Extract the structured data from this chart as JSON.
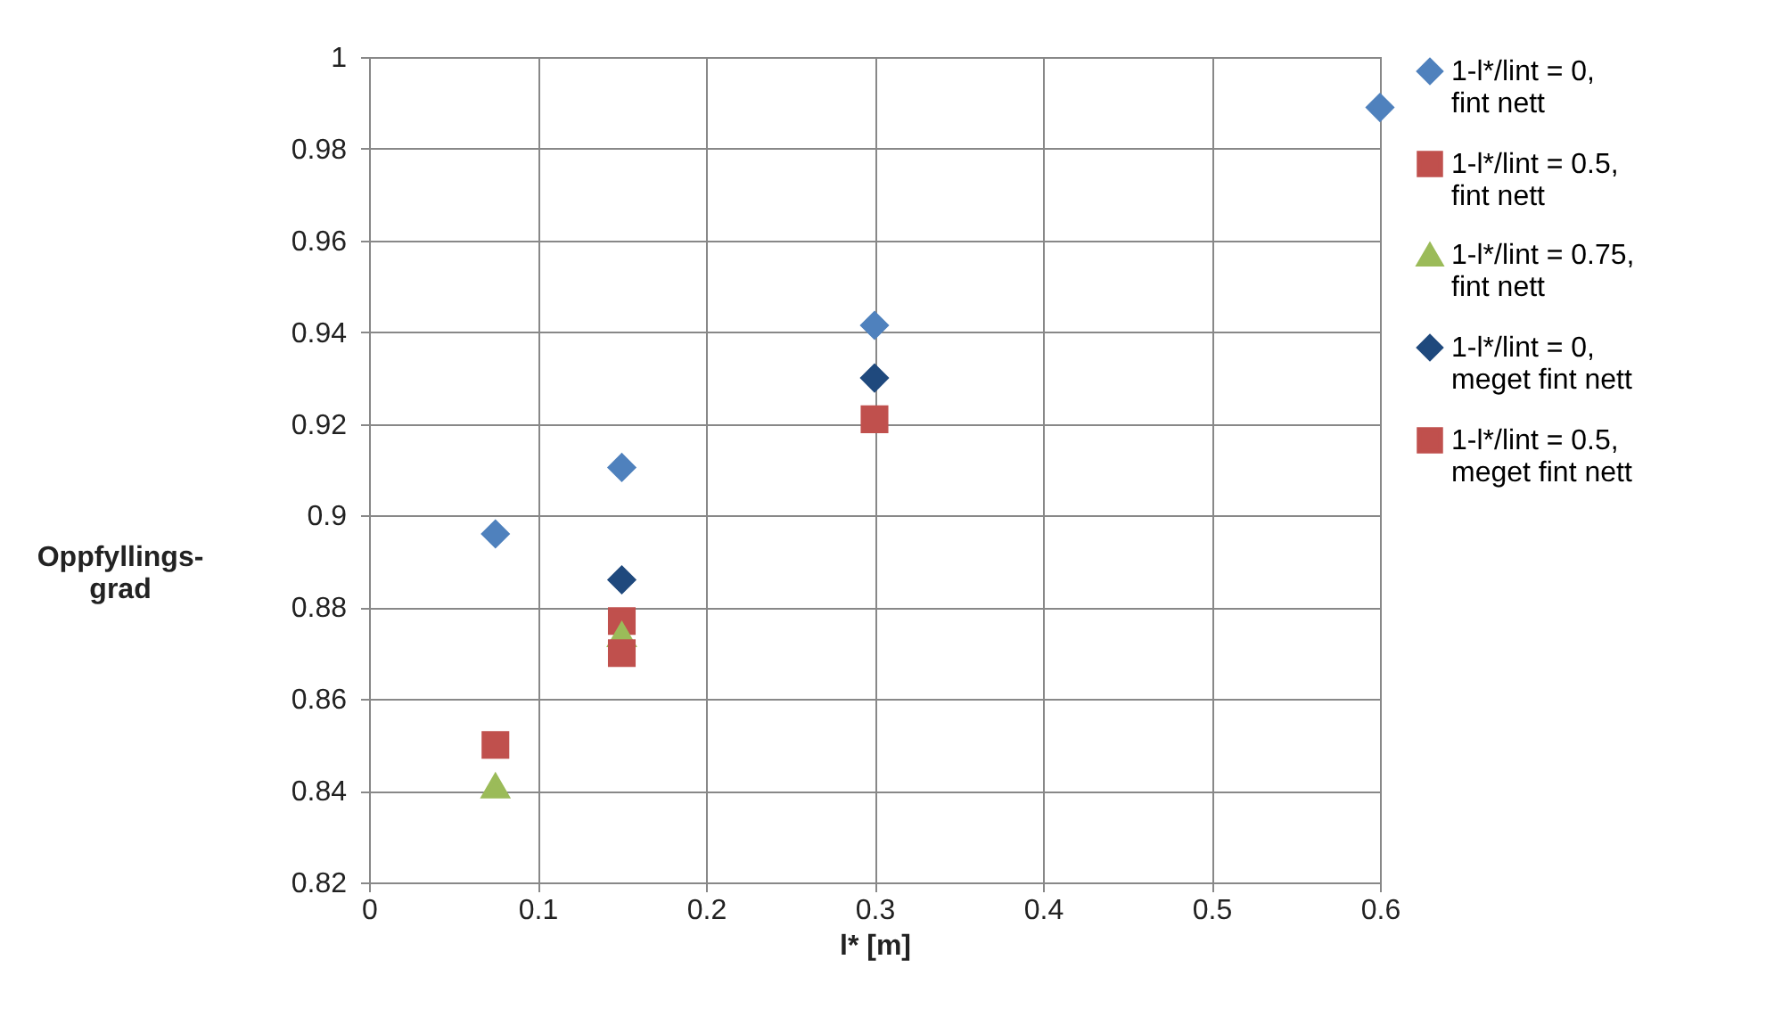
{
  "chart_data": {
    "type": "scatter",
    "xlabel": "l* [m]",
    "ylabel": "Oppfyllings-\ngrad",
    "xlim": [
      0,
      0.6
    ],
    "xticks": [
      0,
      0.1,
      0.2,
      0.3,
      0.4,
      0.5,
      0.6
    ],
    "ylim": [
      0.82,
      1
    ],
    "yticks": [
      0.82,
      0.84,
      0.86,
      0.88,
      0.9,
      0.92,
      0.94,
      0.96,
      0.98,
      1
    ],
    "grid": true,
    "legend": "right",
    "series": [
      {
        "name": "1-l*/lint = 0,\nfint nett",
        "color": "#4f81bd",
        "marker": "diamond",
        "x": [
          0.075,
          0.15,
          0.3,
          0.6
        ],
        "values": [
          0.896,
          0.9105,
          0.9415,
          0.989
        ]
      },
      {
        "name": "1-l*/lint = 0.5,\nfint nett",
        "color": "#c0504d",
        "marker": "square",
        "x": [
          0.075,
          0.15,
          0.3
        ],
        "values": [
          0.85,
          0.877,
          0.921
        ]
      },
      {
        "name": "1-l*/lint = 0.75,\nfint nett",
        "color": "#9bbb59",
        "marker": "triangle",
        "x": [
          0.075,
          0.15
        ],
        "values": [
          0.841,
          0.874
        ]
      },
      {
        "name": "1-l*/lint = 0,\nmeget fint nett",
        "color": "#1f497d",
        "marker": "diamond",
        "x": [
          0.15,
          0.3
        ],
        "values": [
          0.886,
          0.93
        ]
      },
      {
        "name": "1-l*/lint = 0.5,\nmeget fint nett",
        "color": "#c0504d",
        "marker": "square",
        "x": [
          0.15
        ],
        "values": [
          0.87
        ]
      }
    ]
  }
}
